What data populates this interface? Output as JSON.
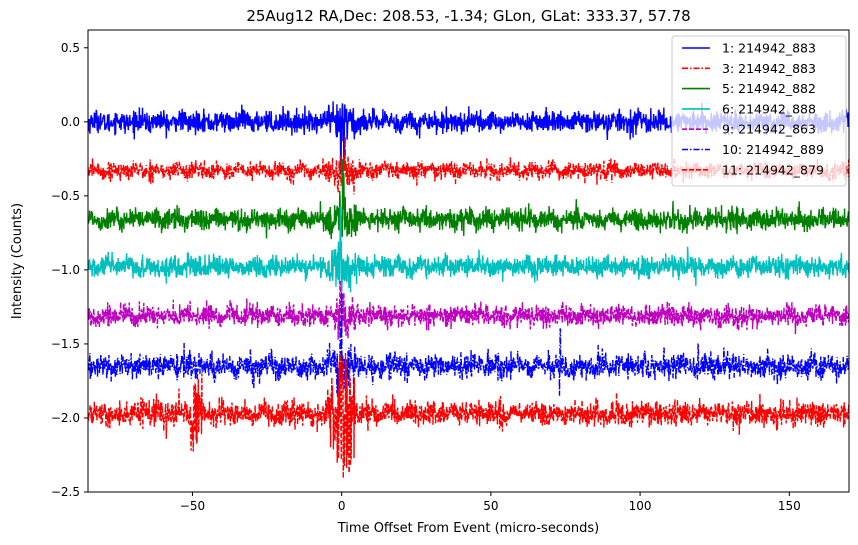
{
  "chart_data": {
    "type": "line",
    "title": "25Aug12 RA,Dec:  208.53,  -1.34; GLon, GLat:  333.37,  57.78",
    "xlabel": "Time Offset From Event (micro-seconds)",
    "ylabel": "Intensity (Counts)",
    "xlim": [
      -85,
      170
    ],
    "ylim": [
      -2.5,
      0.62
    ],
    "xticks": [
      -50,
      0,
      50,
      100,
      150
    ],
    "xtick_labels": [
      "−50",
      "0",
      "50",
      "100",
      "150"
    ],
    "yticks": [
      0.5,
      0.0,
      -0.5,
      -1.0,
      -1.5,
      -2.0,
      -2.5
    ],
    "ytick_labels": [
      "0.5",
      "0.0",
      "−0.5",
      "−1.0",
      "−1.5",
      "−2.0",
      "−2.5"
    ],
    "legend_position": "top-right",
    "series": [
      {
        "name": "1: 214942_883",
        "color": "#0000ff",
        "style": "solid",
        "offset": 0.0,
        "noise": 0.035,
        "spikes": [
          [
            0.3,
            0.12
          ],
          [
            -0.3,
            -0.35
          ],
          [
            0.8,
            -0.3
          ]
        ]
      },
      {
        "name": "3: 214942_883",
        "color": "#ff0000",
        "style": "dashdot",
        "offset": -0.33,
        "noise": 0.028,
        "spikes": [
          [
            0.2,
            0.05
          ],
          [
            -0.2,
            -0.1
          ]
        ]
      },
      {
        "name": "5: 214942_882",
        "color": "#008000",
        "style": "solid",
        "offset": -0.66,
        "noise": 0.035,
        "spikes": [
          [
            0.4,
            0.4
          ],
          [
            0.7,
            0.3
          ],
          [
            -0.3,
            -0.1
          ]
        ]
      },
      {
        "name": "6: 214942_888",
        "color": "#00bfbf",
        "style": "solid",
        "offset": -0.98,
        "noise": 0.035,
        "spikes": [
          [
            -0.4,
            0.4
          ],
          [
            0.1,
            -0.12
          ]
        ]
      },
      {
        "name": "9: 214942_863",
        "color": "#bf00bf",
        "style": "dashed",
        "offset": -1.31,
        "noise": 0.035,
        "spikes": [
          [
            -0.5,
            0.23
          ],
          [
            0.4,
            0.15
          ]
        ]
      },
      {
        "name": "10: 214942_889",
        "color": "#0000ff",
        "style": "dashdot",
        "offset": -1.65,
        "noise": 0.04,
        "spikes": [
          [
            -0.9,
            -0.25
          ],
          [
            -0.5,
            0.3
          ],
          [
            0.0,
            0.5
          ],
          [
            73.0,
            -0.2
          ],
          [
            73.3,
            0.25
          ],
          [
            108.0,
            0.12
          ],
          [
            119.5,
            0.15
          ]
        ]
      },
      {
        "name": "11: 214942_879",
        "color": "#ff0000",
        "style": "dashed",
        "offset": -1.97,
        "noise": 0.04,
        "spikes": [
          [
            -49.0,
            0.2
          ],
          [
            -48.5,
            -0.2
          ],
          [
            -0.5,
            0.4
          ],
          [
            0.4,
            0.35
          ],
          [
            2.5,
            -0.4
          ],
          [
            0.9,
            -0.35
          ]
        ]
      }
    ]
  }
}
